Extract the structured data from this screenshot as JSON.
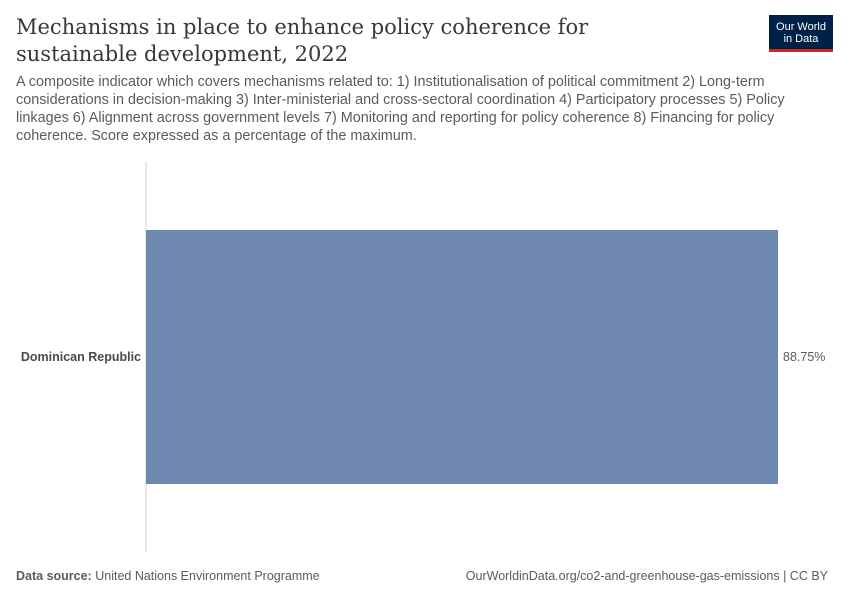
{
  "header": {
    "title": "Mechanisms in place to enhance policy coherence for sustainable development, 2022",
    "subtitle": "A composite indicator which covers mechanisms related to: 1) Institutionalisation of political commitment 2) Long-term considerations in decision-making 3) Inter-ministerial and cross-sectoral coordination 4) Participatory processes 5) Policy linkages 6) Alignment across government levels 7) Monitoring and reporting for policy coherence 8) Financing for policy coherence. Score expressed as a percentage of the maximum."
  },
  "logo": {
    "line1": "Our World",
    "line2": "in Data"
  },
  "footer": {
    "source_label": "Data source:",
    "source_value": "United Nations Environment Programme",
    "url_license": "OurWorldinData.org/co2-and-greenhouse-gas-emissions | CC BY"
  },
  "colors": {
    "bar": "#6f88b0",
    "axis": "#d0d0d0"
  },
  "chart_data": {
    "type": "bar",
    "orientation": "horizontal",
    "categories": [
      "Dominican Republic"
    ],
    "values": [
      88.75
    ],
    "value_labels": [
      "88.75%"
    ],
    "xlim": [
      0,
      88.75
    ],
    "unit": "%"
  }
}
